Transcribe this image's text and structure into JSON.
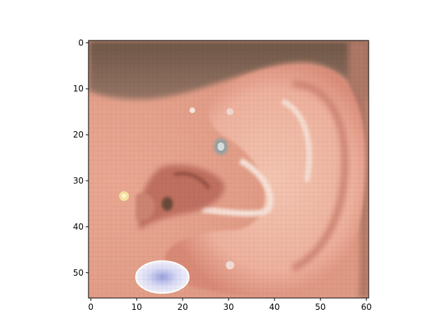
{
  "chart_data": {
    "type": "heatmap",
    "title": "",
    "xlabel": "",
    "ylabel": "",
    "image_pixel_grid": {
      "columns": 61,
      "rows": 56
    },
    "xlim": [
      -0.5,
      60.5
    ],
    "ylim": [
      55.5,
      -0.5
    ],
    "y_axis_inverted": true,
    "grid": false,
    "colorbar": false,
    "x_ticks": [
      0,
      10,
      20,
      30,
      40,
      50,
      60
    ],
    "x_tick_labels": [
      "0",
      "10",
      "20",
      "30",
      "40",
      "50",
      "60"
    ],
    "y_ticks": [
      0,
      10,
      20,
      30,
      40,
      50
    ],
    "y_tick_labels": [
      "0",
      "10",
      "20",
      "30",
      "40",
      "50"
    ],
    "image_content": "pixelated close-up photograph of a human ear with small piercings",
    "palette": {
      "skin": "#e5a38d",
      "skin_light": "#f3c2ad",
      "shadow": "#b56a58",
      "hair": "#7d6556",
      "hair_dark": "#5a4538",
      "highlight": "#f8e4dc",
      "earring": "#e6e6f7",
      "earring_core": "#aab0e0",
      "stud_gold": "#f6e2a0"
    }
  }
}
